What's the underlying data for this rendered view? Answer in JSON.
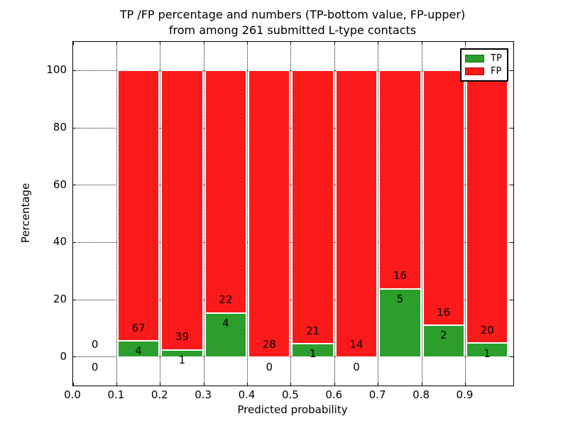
{
  "title": {
    "line1": "TP /FP percentage and numbers (TP-bottom value, FP-upper)",
    "line2": "from among 261 submitted L-type contacts"
  },
  "axes": {
    "xlabel": "Predicted probability",
    "ylabel": "Percentage"
  },
  "legend": [
    {
      "label": "TP",
      "color": "#2b9e2b"
    },
    {
      "label": "FP",
      "color": "#fb1a1a"
    }
  ],
  "chart_data": {
    "type": "bar",
    "stacked": true,
    "title": "TP /FP percentage and numbers (TP-bottom value, FP-upper) from among 261 submitted L-type contacts",
    "xlabel": "Predicted probability",
    "ylabel": "Percentage",
    "total_submitted": 261,
    "xlim": [
      0,
      1.01
    ],
    "ylim": [
      -10,
      110
    ],
    "xticks": [
      0.0,
      0.1,
      0.2,
      0.3,
      0.4,
      0.5,
      0.6,
      0.7,
      0.8,
      0.9
    ],
    "xtick_labels": [
      "0.0",
      "0.1",
      "0.2",
      "0.3",
      "0.4",
      "0.5",
      "0.6",
      "0.7",
      "0.8",
      "0.9"
    ],
    "yticks": [
      0,
      20,
      40,
      60,
      80,
      100
    ],
    "ytick_labels": [
      "0",
      "20",
      "40",
      "60",
      "80",
      "100"
    ],
    "grid": "dotted",
    "legend_position": "upper right",
    "series": [
      {
        "name": "TP",
        "color": "#2b9e2b"
      },
      {
        "name": "FP",
        "color": "#fb1a1a"
      }
    ],
    "bins": [
      {
        "x0": 0.0,
        "x1": 0.1,
        "tp_count": 0,
        "fp_count": 0,
        "tp_pct": 0,
        "fp_pct": 0
      },
      {
        "x0": 0.1,
        "x1": 0.2,
        "tp_count": 4,
        "fp_count": 67,
        "tp_pct": 5.63,
        "fp_pct": 94.37
      },
      {
        "x0": 0.2,
        "x1": 0.3,
        "tp_count": 1,
        "fp_count": 39,
        "tp_pct": 2.5,
        "fp_pct": 97.5
      },
      {
        "x0": 0.3,
        "x1": 0.4,
        "tp_count": 4,
        "fp_count": 22,
        "tp_pct": 15.38,
        "fp_pct": 84.62
      },
      {
        "x0": 0.4,
        "x1": 0.5,
        "tp_count": 0,
        "fp_count": 28,
        "tp_pct": 0,
        "fp_pct": 100
      },
      {
        "x0": 0.5,
        "x1": 0.6,
        "tp_count": 1,
        "fp_count": 21,
        "tp_pct": 4.55,
        "fp_pct": 95.45
      },
      {
        "x0": 0.6,
        "x1": 0.7,
        "tp_count": 0,
        "fp_count": 14,
        "tp_pct": 0,
        "fp_pct": 100
      },
      {
        "x0": 0.7,
        "x1": 0.8,
        "tp_count": 5,
        "fp_count": 16,
        "tp_pct": 23.81,
        "fp_pct": 76.19
      },
      {
        "x0": 0.8,
        "x1": 0.9,
        "tp_count": 2,
        "fp_count": 16,
        "tp_pct": 11.11,
        "fp_pct": 88.89
      },
      {
        "x0": 0.9,
        "x1": 1.0,
        "tp_count": 1,
        "fp_count": 20,
        "tp_pct": 4.76,
        "fp_pct": 95.24
      }
    ]
  }
}
